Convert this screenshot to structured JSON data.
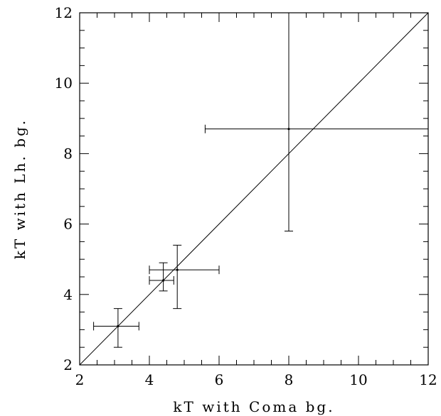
{
  "chart_data": {
    "type": "scatter",
    "title": "",
    "xlabel": "kT with Coma bg.",
    "ylabel": "kT with Lh. bg.",
    "xlim": [
      2,
      12
    ],
    "ylim": [
      2,
      12
    ],
    "x_ticks": [
      2,
      4,
      6,
      8,
      10,
      12
    ],
    "y_ticks": [
      2,
      4,
      6,
      8,
      10,
      12
    ],
    "minor_tick_step": 0.5,
    "reference_line": {
      "type": "identity",
      "from": [
        2,
        2
      ],
      "to": [
        12,
        12
      ]
    },
    "points": [
      {
        "x": 3.1,
        "y": 3.1,
        "x_err": [
          2.4,
          3.7
        ],
        "y_err": [
          2.5,
          3.6
        ]
      },
      {
        "x": 4.4,
        "y": 4.4,
        "x_err": [
          4.0,
          4.7
        ],
        "y_err": [
          4.1,
          4.9
        ]
      },
      {
        "x": 4.8,
        "y": 4.7,
        "x_err": [
          4.0,
          6.0
        ],
        "y_err": [
          3.6,
          5.4
        ]
      },
      {
        "x": 8.0,
        "y": 8.7,
        "x_err": [
          5.6,
          12.0
        ],
        "y_err": [
          5.8,
          12.0
        ]
      }
    ],
    "grid": false,
    "legend": "none",
    "colors": {
      "marks": "#000000",
      "background": "#ffffff"
    }
  }
}
